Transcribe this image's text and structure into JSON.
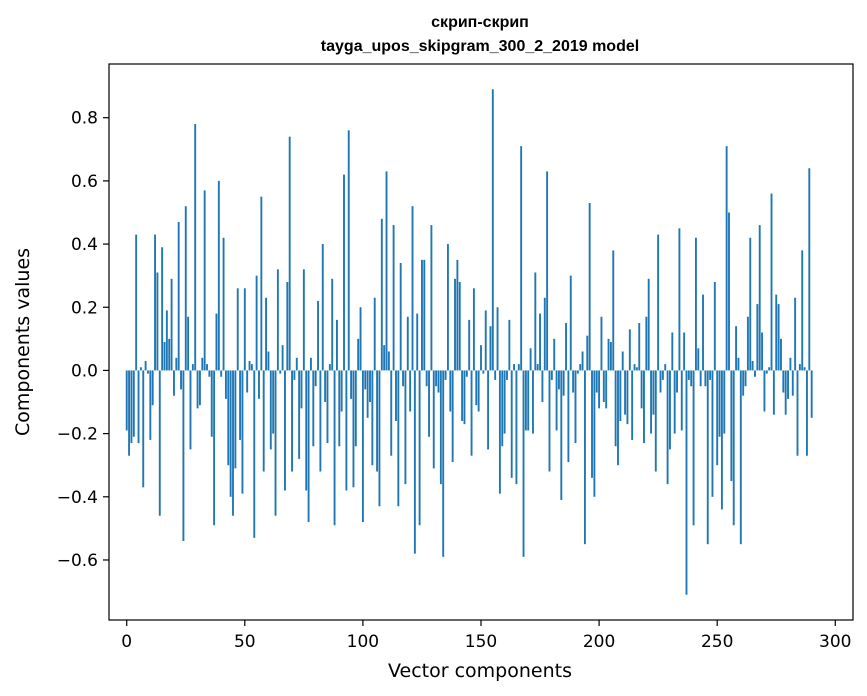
{
  "chart_data": {
    "type": "bar",
    "title": "скрип-скрип",
    "subtitle": "tayga_upos_skipgram_300_2_2019 model",
    "xlabel": "Vector components",
    "ylabel": "Components values",
    "xlim": [
      -7.5,
      307.5
    ],
    "ylim": [
      -0.79,
      0.97
    ],
    "xticks": [
      0,
      50,
      100,
      150,
      200,
      250,
      300
    ],
    "xtick_labels": [
      "0",
      "50",
      "100",
      "150",
      "200",
      "250",
      "300"
    ],
    "yticks": [
      -0.6,
      -0.4,
      -0.2,
      0.0,
      0.2,
      0.4,
      0.6,
      0.8
    ],
    "ytick_labels": [
      "−0.6",
      "−0.4",
      "−0.2",
      "0.0",
      "0.2",
      "0.4",
      "0.6",
      "0.8"
    ],
    "grid": false,
    "bar_color": "#1f77b4",
    "values": [
      -0.19,
      -0.27,
      -0.23,
      -0.21,
      0.43,
      -0.23,
      0.01,
      -0.37,
      0.03,
      -0.01,
      -0.22,
      -0.11,
      0.43,
      0.31,
      -0.46,
      0.39,
      0.09,
      0.19,
      0.1,
      0.29,
      -0.08,
      0.04,
      0.47,
      -0.06,
      -0.54,
      0.52,
      0.17,
      -0.25,
      0.02,
      0.78,
      -0.12,
      -0.11,
      0.04,
      0.57,
      0.02,
      -0.02,
      -0.21,
      -0.49,
      0.18,
      0.6,
      -0.02,
      0.42,
      -0.09,
      -0.3,
      -0.4,
      -0.46,
      -0.31,
      0.26,
      -0.22,
      -0.39,
      0.26,
      -0.07,
      0.03,
      0.02,
      -0.53,
      0.3,
      -0.09,
      0.55,
      -0.32,
      0.23,
      0.06,
      -0.25,
      -0.2,
      -0.46,
      0.32,
      -0.01,
      0.08,
      -0.38,
      0.28,
      0.74,
      -0.32,
      -0.03,
      0.04,
      -0.28,
      -0.12,
      0.32,
      -0.38,
      -0.48,
      0.04,
      -0.24,
      -0.05,
      0.22,
      -0.32,
      0.4,
      -0.1,
      -0.23,
      0.02,
      0.29,
      -0.49,
      0.16,
      -0.24,
      -0.13,
      0.62,
      -0.38,
      0.76,
      -0.09,
      -0.37,
      -0.24,
      0.1,
      0.2,
      -0.48,
      -0.06,
      -0.15,
      -0.1,
      -0.3,
      0.23,
      -0.32,
      -0.43,
      0.48,
      0.08,
      0.63,
      0.06,
      -0.27,
      0.46,
      -0.16,
      -0.43,
      0.34,
      -0.05,
      -0.36,
      0.17,
      -0.13,
      0.52,
      -0.58,
      0.18,
      -0.49,
      0.35,
      0.35,
      -0.05,
      -0.21,
      0.46,
      -0.31,
      -0.05,
      -0.07,
      -0.36,
      -0.59,
      -0.03,
      0.4,
      -0.13,
      -0.29,
      0.29,
      0.35,
      0.28,
      -0.16,
      -0.17,
      -0.02,
      0.16,
      -0.27,
      0.26,
      -0.11,
      -0.13,
      0.08,
      -0.01,
      0.19,
      -0.25,
      0.14,
      0.89,
      -0.03,
      0.2,
      -0.39,
      -0.24,
      -0.2,
      -0.03,
      0.16,
      -0.34,
      0.02,
      -0.36,
      0.02,
      0.71,
      -0.59,
      -0.19,
      -0.19,
      0.07,
      -0.2,
      0.31,
      0.02,
      0.18,
      -0.1,
      0.23,
      0.63,
      -0.32,
      -0.03,
      0.1,
      -0.19,
      -0.06,
      -0.41,
      -0.08,
      0.15,
      -0.29,
      0.3,
      -0.07,
      -0.23,
      -0.01,
      0.02,
      0.06,
      -0.55,
      0.11,
      0.53,
      -0.34,
      -0.4,
      -0.07,
      -0.12,
      0.17,
      -0.1,
      -0.12,
      0.1,
      0.09,
      0.38,
      -0.24,
      -0.3,
      -0.16,
      0.06,
      -0.14,
      -0.17,
      0.13,
      -0.22,
      0.02,
      0.01,
      0.15,
      -0.12,
      -0.23,
      0.17,
      0.29,
      -0.2,
      -0.14,
      -0.32,
      0.43,
      -0.07,
      -0.03,
      0.02,
      -0.36,
      -0.25,
      0.12,
      -0.2,
      -0.07,
      0.45,
      -0.19,
      0.12,
      -0.71,
      -0.03,
      -0.05,
      -0.49,
      0.42,
      0.07,
      -0.05,
      0.24,
      -0.05,
      -0.55,
      -0.03,
      -0.4,
      0.28,
      -0.3,
      -0.21,
      -0.44,
      -0.2,
      0.71,
      0.5,
      -0.35,
      -0.49,
      0.14,
      0.04,
      -0.55,
      -0.08,
      -0.05,
      0.17,
      0.42,
      0.03,
      -0.02,
      0.21,
      0.46,
      0.12,
      -0.13,
      -0.01,
      0.01,
      0.56,
      -0.14,
      0.24,
      0.21,
      0.1,
      -0.07,
      -0.14,
      -0.09,
      0.04,
      -0.08,
      0.23,
      -0.27,
      0.02,
      0.38,
      0.01,
      -0.27,
      0.64,
      -0.15
    ]
  }
}
